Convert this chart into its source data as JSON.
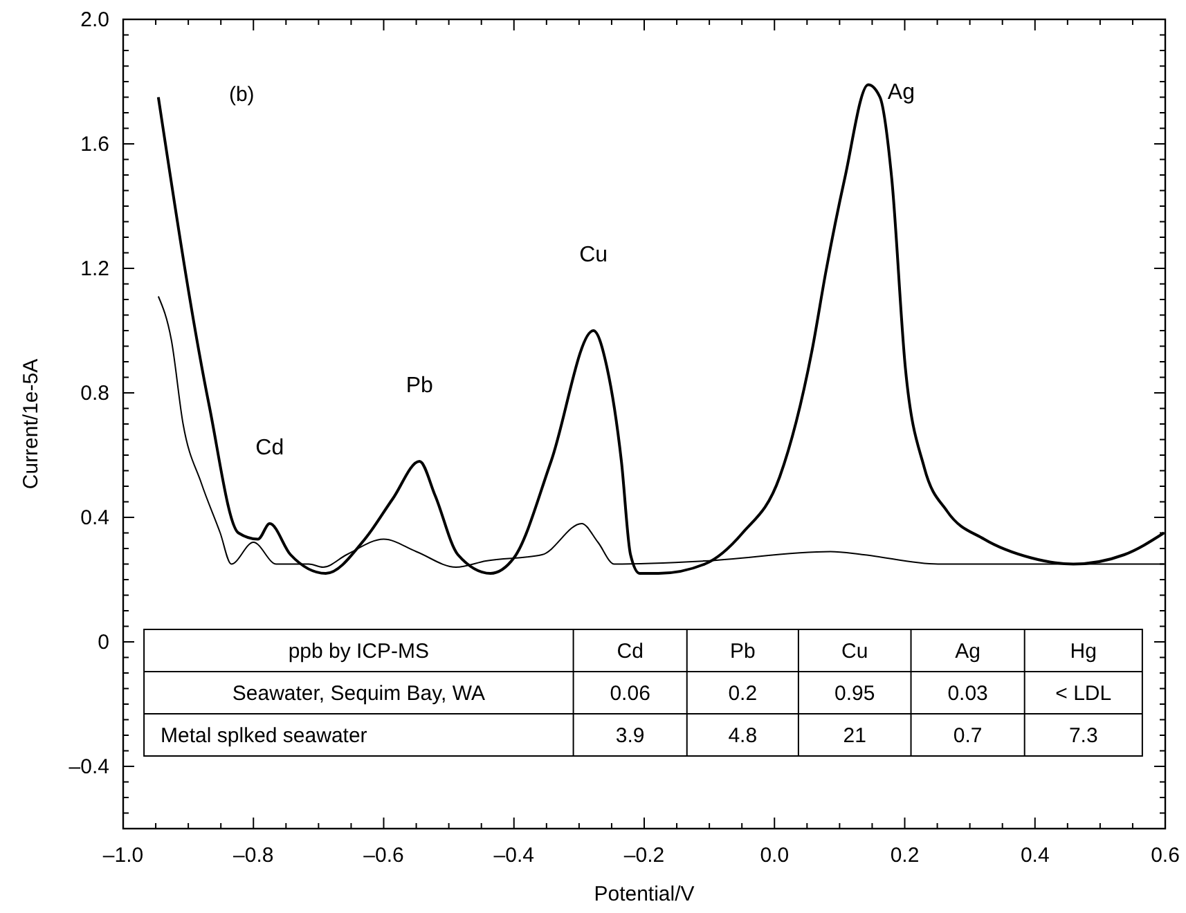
{
  "chart_data": {
    "type": "line",
    "title": "(b)",
    "xlabel": "Potential/V",
    "ylabel": "Current/1e-5A",
    "xlim": [
      -1.0,
      0.6
    ],
    "ylim": [
      -0.6,
      2.0
    ],
    "xticks": [
      {
        "value": -1.0,
        "label": "–1.0"
      },
      {
        "value": -0.95,
        "label": null
      },
      {
        "value": -0.9,
        "label": null
      },
      {
        "value": -0.85,
        "label": null
      },
      {
        "value": -0.8,
        "label": "–0.8"
      },
      {
        "value": -0.75,
        "label": null
      },
      {
        "value": -0.7,
        "label": null
      },
      {
        "value": -0.65,
        "label": null
      },
      {
        "value": -0.6,
        "label": "–0.6"
      },
      {
        "value": -0.55,
        "label": null
      },
      {
        "value": -0.5,
        "label": null
      },
      {
        "value": -0.45,
        "label": null
      },
      {
        "value": -0.4,
        "label": "–0.4"
      },
      {
        "value": -0.35,
        "label": null
      },
      {
        "value": -0.3,
        "label": null
      },
      {
        "value": -0.25,
        "label": null
      },
      {
        "value": -0.2,
        "label": "–0.2"
      },
      {
        "value": -0.15,
        "label": null
      },
      {
        "value": -0.1,
        "label": null
      },
      {
        "value": -0.05,
        "label": null
      },
      {
        "value": 0,
        "label": "0.0"
      },
      {
        "value": 0.05,
        "label": null
      },
      {
        "value": 0.1,
        "label": null
      },
      {
        "value": 0.15,
        "label": null
      },
      0.2,
      {
        "value": 0.25,
        "label": null
      },
      {
        "value": 0.3,
        "label": null
      },
      {
        "value": 0.35,
        "label": null
      },
      0.4,
      {
        "value": 0.45,
        "label": null
      },
      {
        "value": 0.5,
        "label": null
      },
      {
        "value": 0.55,
        "label": null
      },
      0.6
    ],
    "yticks": [
      {
        "value": -0.6,
        "label": null
      },
      {
        "value": -0.55,
        "label": null
      },
      {
        "value": -0.5,
        "label": null
      },
      {
        "value": -0.45,
        "label": null
      },
      {
        "value": -0.4,
        "label": "–0.4"
      },
      {
        "value": -0.35,
        "label": null
      },
      {
        "value": -0.3,
        "label": null
      },
      {
        "value": -0.25,
        "label": null
      },
      {
        "value": -0.2,
        "label": null
      },
      {
        "value": -0.15,
        "label": null
      },
      {
        "value": -0.1,
        "label": null
      },
      {
        "value": -0.05,
        "label": null
      },
      0,
      {
        "value": 0.05,
        "label": null
      },
      {
        "value": 0.1,
        "label": null
      },
      {
        "value": 0.15,
        "label": null
      },
      {
        "value": 0.2,
        "label": null
      },
      {
        "value": 0.25,
        "label": null
      },
      {
        "value": 0.3,
        "label": null
      },
      {
        "value": 0.35,
        "label": null
      },
      0.4,
      {
        "value": 0.45,
        "label": null
      },
      {
        "value": 0.5,
        "label": null
      },
      {
        "value": 0.55,
        "label": null
      },
      {
        "value": 0.6,
        "label": null
      },
      {
        "value": 0.65,
        "label": null
      },
      {
        "value": 0.7,
        "label": null
      },
      {
        "value": 0.75,
        "label": null
      },
      0.8,
      {
        "value": 0.85,
        "label": null
      },
      {
        "value": 0.9,
        "label": null
      },
      {
        "value": 0.95,
        "label": null
      },
      {
        "value": 1.0,
        "label": null
      },
      {
        "value": 1.05,
        "label": null
      },
      {
        "value": 1.1,
        "label": null
      },
      {
        "value": 1.15,
        "label": null
      },
      1.2,
      {
        "value": 1.25,
        "label": null
      },
      {
        "value": 1.3,
        "label": null
      },
      {
        "value": 1.35,
        "label": null
      },
      {
        "value": 1.4,
        "label": null
      },
      {
        "value": 1.45,
        "label": null
      },
      {
        "value": 1.5,
        "label": null
      },
      {
        "value": 1.55,
        "label": null
      },
      1.6,
      {
        "value": 1.65,
        "label": null
      },
      {
        "value": 1.7,
        "label": null
      },
      {
        "value": 1.75,
        "label": null
      },
      {
        "value": 1.8,
        "label": null
      },
      {
        "value": 1.85,
        "label": null
      },
      {
        "value": 1.9,
        "label": null
      },
      {
        "value": 1.95,
        "label": null
      },
      {
        "value": 2.0,
        "label": "2.0"
      }
    ],
    "series": [
      {
        "color": "#000000",
        "x": [
          -0.946,
          -0.868,
          -0.823,
          -0.793,
          -0.775,
          -0.743,
          -0.689,
          -0.629,
          -0.586,
          -0.545,
          -0.521,
          -0.486,
          -0.436,
          -0.4,
          -0.343,
          -0.278,
          -0.257,
          -0.235,
          -0.221,
          -0.207,
          -0.178,
          -0.107,
          -0.049,
          0.008,
          0.058,
          0.079,
          0.108,
          0.144,
          0.162,
          0.18,
          0.201,
          0.23,
          0.265,
          0.322,
          0.394,
          0.459,
          0.537,
          0.598
        ],
        "values": [
          1.75,
          0.76,
          0.35,
          0.33,
          0.38,
          0.28,
          0.22,
          0.33,
          0.46,
          0.58,
          0.47,
          0.28,
          0.22,
          0.27,
          0.58,
          1.0,
          0.88,
          0.58,
          0.28,
          0.22,
          0.22,
          0.25,
          0.35,
          0.53,
          0.94,
          1.19,
          1.49,
          1.79,
          1.75,
          1.49,
          0.88,
          0.56,
          0.42,
          0.33,
          0.27,
          0.25,
          0.28,
          0.35
        ]
      },
      {
        "color": "#000000",
        "type": "line",
        "x": [
          -0.946,
          -0.926,
          -0.908,
          -0.88,
          -0.851,
          -0.834,
          -0.8,
          -0.765,
          -0.715,
          -0.693,
          -0.657,
          -0.6,
          -0.55,
          -0.489,
          -0.443,
          -0.357,
          -0.296,
          -0.271,
          -0.246,
          -0.107,
          0.086,
          0.137,
          0.251,
          0.43,
          0.598
        ],
        "values": [
          1.11,
          0.97,
          0.7,
          0.51,
          0.35,
          0.25,
          0.32,
          0.25,
          0.25,
          0.24,
          0.28,
          0.33,
          0.29,
          0.24,
          0.26,
          0.28,
          0.38,
          0.32,
          0.25,
          0.26,
          0.29,
          0.28,
          0.25,
          0.25,
          0.25
        ]
      }
    ],
    "annotations": [
      {
        "text": "Cd",
        "x": -0.775,
        "y": 0.38
      },
      {
        "text": "Pb",
        "x": -0.545,
        "y": 0.58
      },
      {
        "text": "Cu",
        "x": -0.278,
        "y": 1.0
      },
      {
        "text": "Ag",
        "x": 0.144,
        "y": 1.79
      },
      "ppb by ICP-MS",
      "Cd",
      "Pb",
      "Cu",
      "Ag",
      "Hg",
      "Seawater, Sequim Bay, WA",
      "0.06",
      "0.2",
      "0.95",
      "0.03",
      "< LDL",
      "Metal splked seawater",
      "3.9",
      "4.8",
      "21",
      "0.7",
      "7.3"
    ]
  }
}
